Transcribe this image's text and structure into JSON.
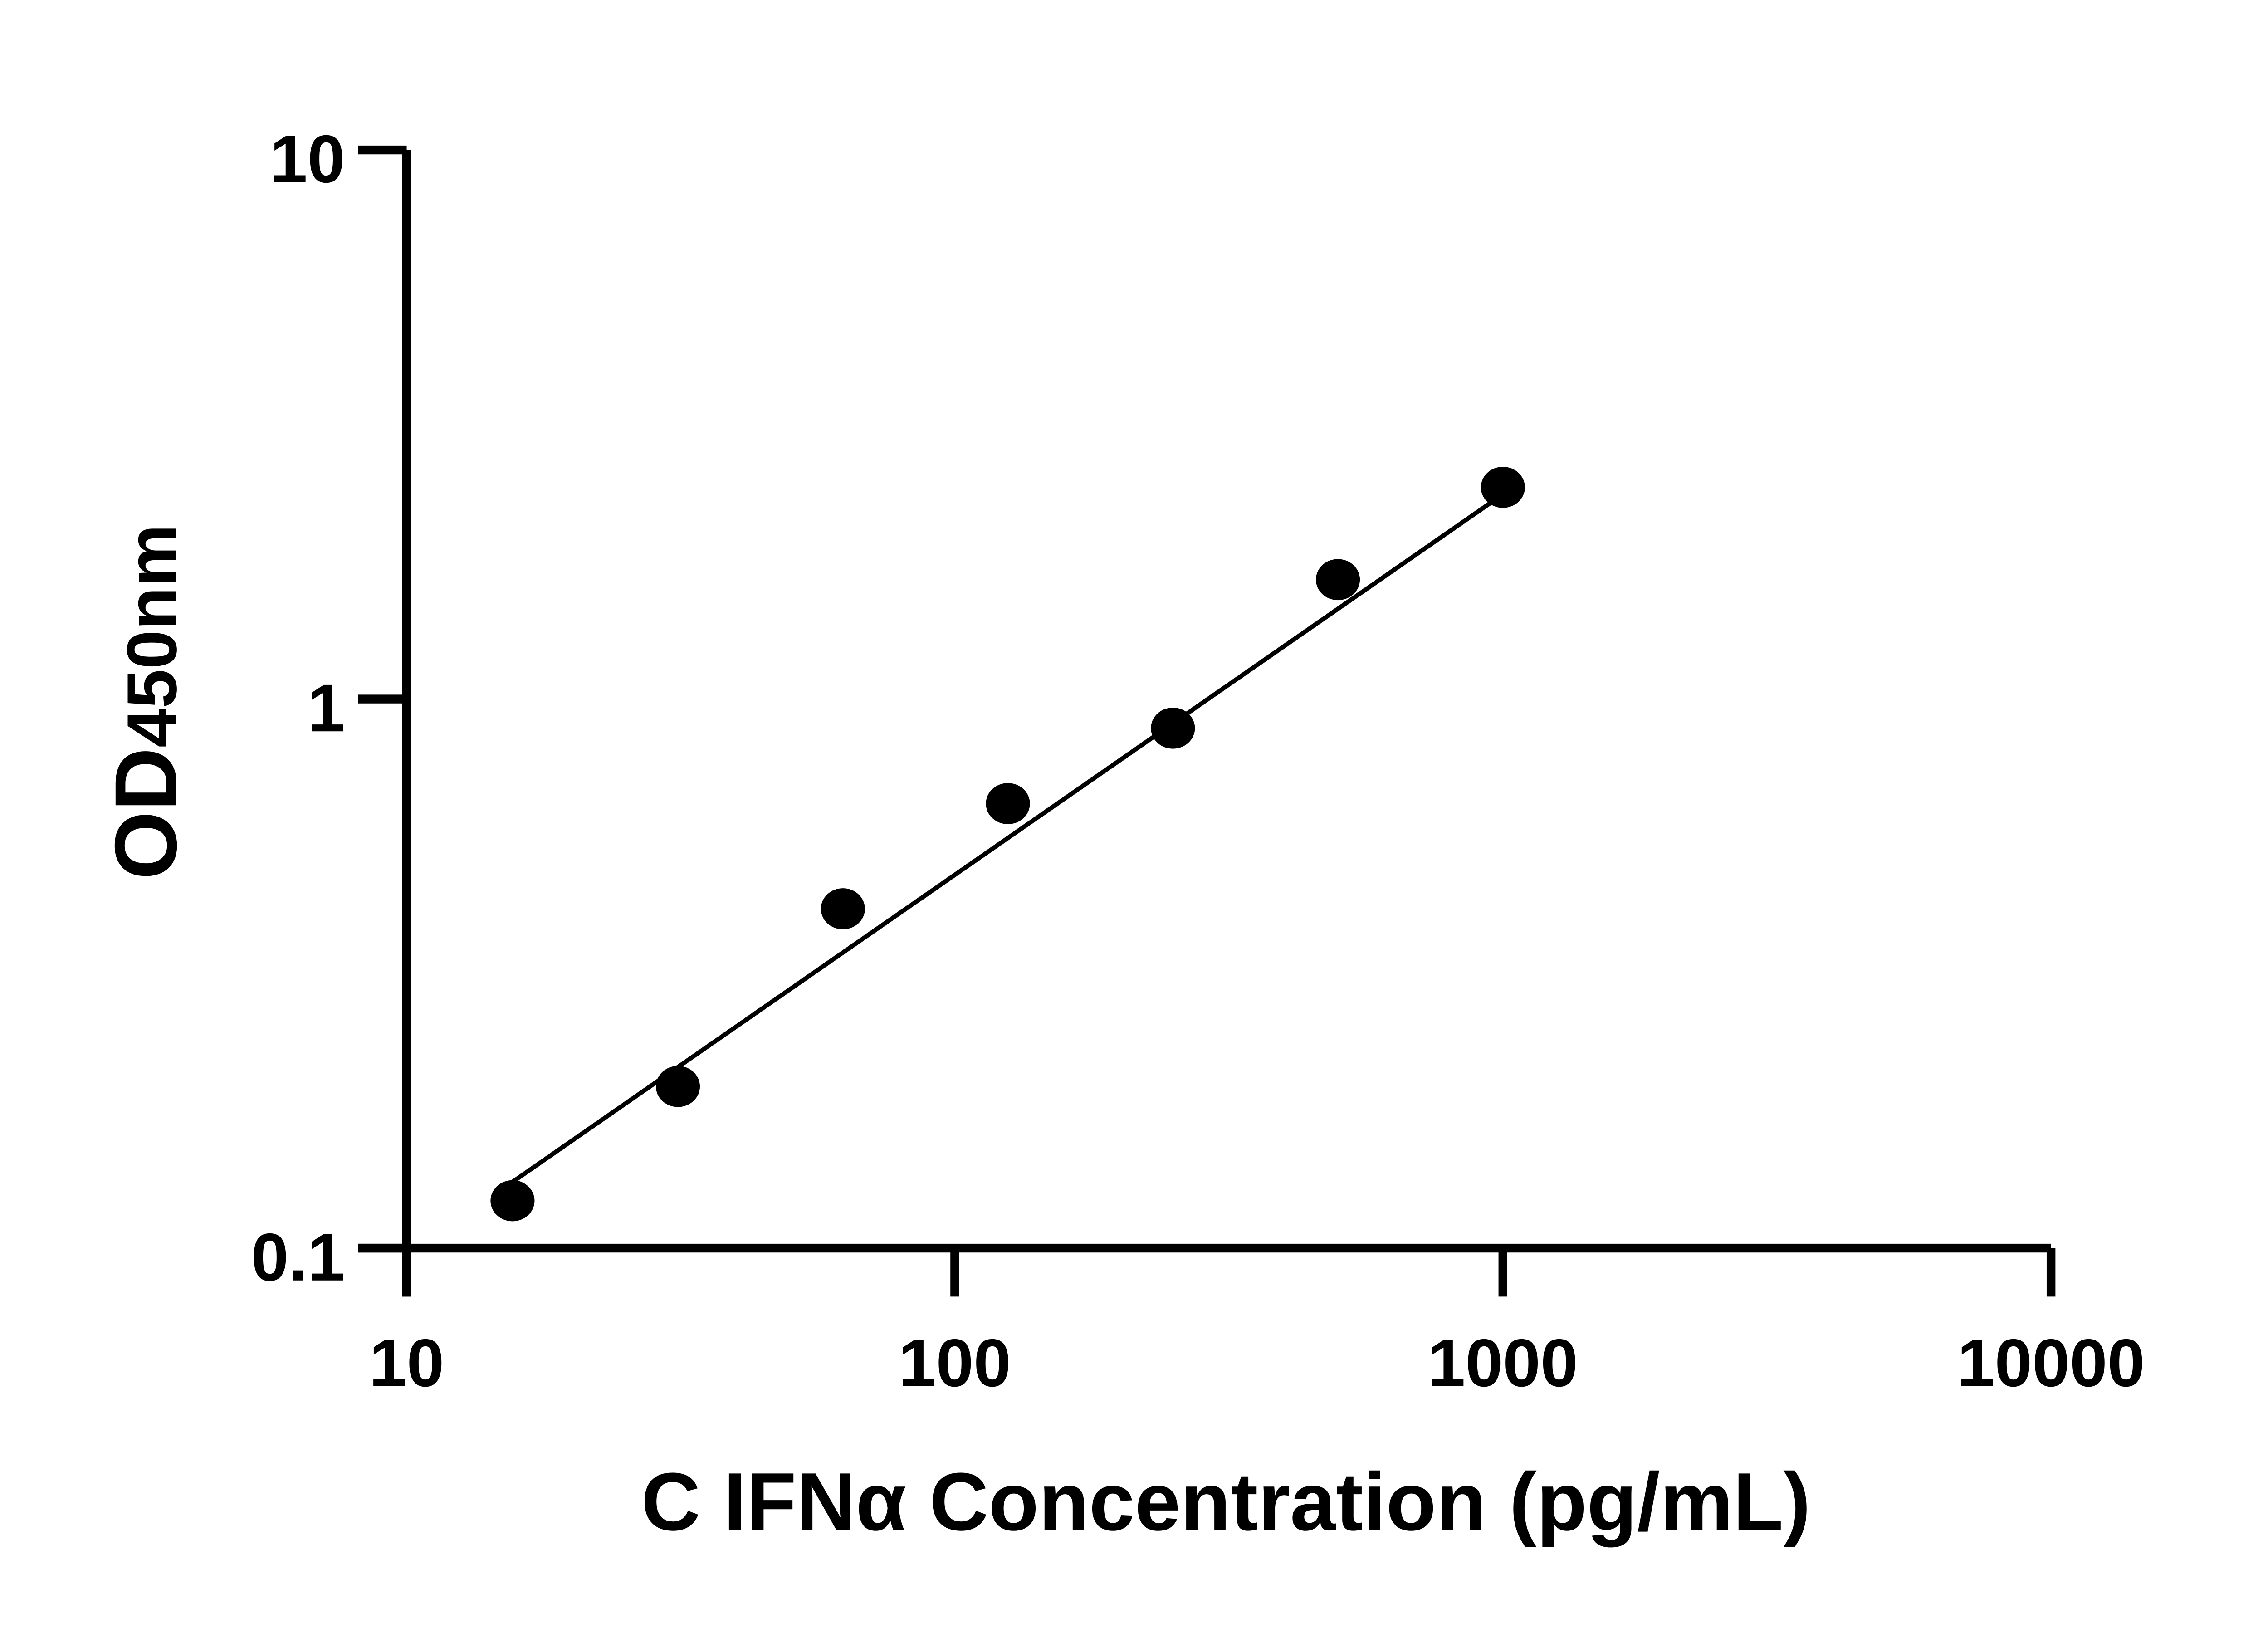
{
  "chart_data": {
    "type": "scatter",
    "title": "",
    "xlabel": "C IFNα Concentration (pg/mL)",
    "ylabel_main": "OD",
    "ylabel_sub": "450nm",
    "x_scale": "log",
    "y_scale": "log",
    "xlim": [
      10,
      10000
    ],
    "ylim": [
      0.1,
      10
    ],
    "x_ticks": [
      "10",
      "100",
      "1000",
      "10000"
    ],
    "y_ticks": [
      "0.1",
      "1",
      "10"
    ],
    "grid": false,
    "points": [
      {
        "x": 15.6,
        "y": 0.122
      },
      {
        "x": 31.25,
        "y": 0.197
      },
      {
        "x": 62.5,
        "y": 0.415
      },
      {
        "x": 125,
        "y": 0.645
      },
      {
        "x": 250,
        "y": 0.885
      },
      {
        "x": 500,
        "y": 1.65
      },
      {
        "x": 1000,
        "y": 2.43
      }
    ],
    "fit_line": {
      "x": [
        15.6,
        1000
      ],
      "y": [
        0.132,
        2.36
      ]
    },
    "color": "#000000"
  }
}
